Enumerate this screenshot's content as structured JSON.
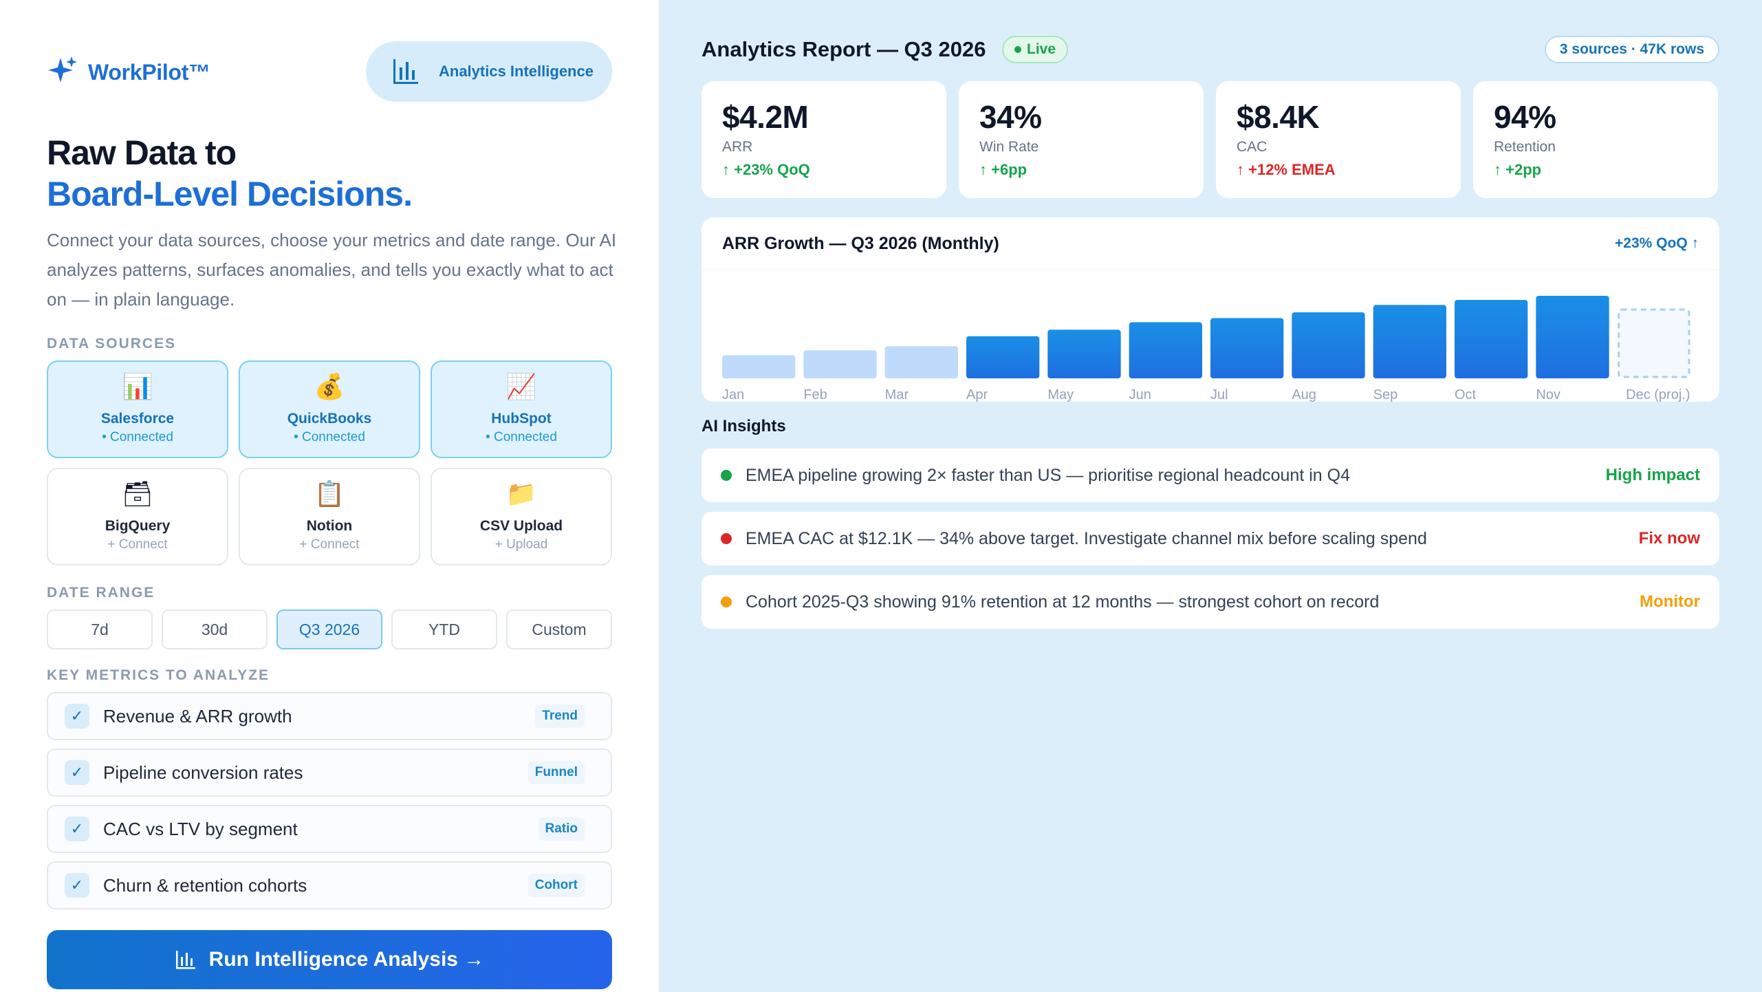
{
  "brand": {
    "name": "WorkPilot™"
  },
  "header_pill": {
    "label": "Analytics Intelligence"
  },
  "hero": {
    "line1": "Raw Data to",
    "line2": "Board-Level Decisions.",
    "description": "Connect your data sources, choose your metrics and date range. Our AI analyzes patterns, surfaces anomalies, and tells you exactly what to act on — in plain language."
  },
  "sections": {
    "data_sources": "DATA SOURCES",
    "date_range": "DATE RANGE",
    "key_metrics": "KEY METRICS TO ANALYZE"
  },
  "sources": [
    {
      "name": "Salesforce",
      "status": "• Connected",
      "icon": "bar-chart-icon",
      "glyph": "📊",
      "connected": true
    },
    {
      "name": "QuickBooks",
      "status": "• Connected",
      "icon": "money-bag-icon",
      "glyph": "💰",
      "connected": true
    },
    {
      "name": "HubSpot",
      "status": "• Connected",
      "icon": "trend-chart-icon",
      "glyph": "📈",
      "connected": true
    },
    {
      "name": "BigQuery",
      "status": "+ Connect",
      "icon": "database-icon",
      "glyph": "🗃",
      "connected": false
    },
    {
      "name": "Notion",
      "status": "+ Connect",
      "icon": "clipboard-icon",
      "glyph": "📋",
      "connected": false
    },
    {
      "name": "CSV Upload",
      "status": "+ Upload",
      "icon": "folder-icon",
      "glyph": "📁",
      "connected": false
    }
  ],
  "date_ranges": [
    {
      "label": "7d",
      "selected": false
    },
    {
      "label": "30d",
      "selected": false
    },
    {
      "label": "Q3 2026",
      "selected": true
    },
    {
      "label": "YTD",
      "selected": false
    },
    {
      "label": "Custom",
      "selected": false
    }
  ],
  "metrics": [
    {
      "name": "Revenue & ARR growth",
      "tag": "Trend",
      "checked": true
    },
    {
      "name": "Pipeline conversion rates",
      "tag": "Funnel",
      "checked": true
    },
    {
      "name": "CAC vs LTV by segment",
      "tag": "Ratio",
      "checked": true
    },
    {
      "name": "Churn & retention cohorts",
      "tag": "Cohort",
      "checked": true
    }
  ],
  "run_button": {
    "label": "Run Intelligence Analysis →"
  },
  "report": {
    "title": "Analytics Report — Q3 2026",
    "live_label": "Live",
    "sources_info": "3 sources · 47K rows"
  },
  "kpis": [
    {
      "value": "$4.2M",
      "label": "ARR",
      "change": "↑ +23% QoQ",
      "tone": "up"
    },
    {
      "value": "34%",
      "label": "Win Rate",
      "change": "↑ +6pp",
      "tone": "up"
    },
    {
      "value": "$8.4K",
      "label": "CAC",
      "change": "↑ +12% EMEA",
      "tone": "bad"
    },
    {
      "value": "94%",
      "label": "Retention",
      "change": "↑ +2pp",
      "tone": "up"
    }
  ],
  "chart": {
    "title": "ARR Growth — Q3 2026 (Monthly)",
    "delta": "+23% QoQ ↑"
  },
  "chart_data": {
    "type": "bar",
    "title": "ARR Growth — Q3 2026 (Monthly)",
    "categories": [
      "Jan",
      "Feb",
      "Mar",
      "Apr",
      "May",
      "Jun",
      "Jul",
      "Aug",
      "Sep",
      "Oct",
      "Nov",
      "Dec (proj.)"
    ],
    "values": [
      28,
      34,
      39,
      51,
      59,
      68,
      73,
      80,
      89,
      95,
      100,
      85
    ],
    "styles": [
      "light",
      "light",
      "light",
      "solid",
      "solid",
      "solid",
      "solid",
      "solid",
      "solid",
      "solid",
      "solid",
      "projected"
    ],
    "colors": {
      "light": "#bfdbfb",
      "solid_top": "#1a8fe6",
      "solid_bottom": "#1e6fe0",
      "projected": "#a8d0ee"
    },
    "ylim": [
      0,
      100
    ],
    "xlabel": "",
    "ylabel": "",
    "grid": false,
    "legend": "none"
  },
  "insights_title": "AI Insights",
  "insights": [
    {
      "text": "EMEA pipeline growing 2× faster than US — prioritise regional headcount in Q4",
      "impact": "High impact",
      "color": "#16a34a"
    },
    {
      "text": "EMEA CAC at $12.1K — 34% above target. Investigate channel mix before scaling spend",
      "impact": "Fix now",
      "color": "#dc2626"
    },
    {
      "text": "Cohort 2025-Q3 showing 91% retention at 12 months — strongest cohort on record",
      "impact": "Monitor",
      "color": "#f59e0b"
    }
  ]
}
